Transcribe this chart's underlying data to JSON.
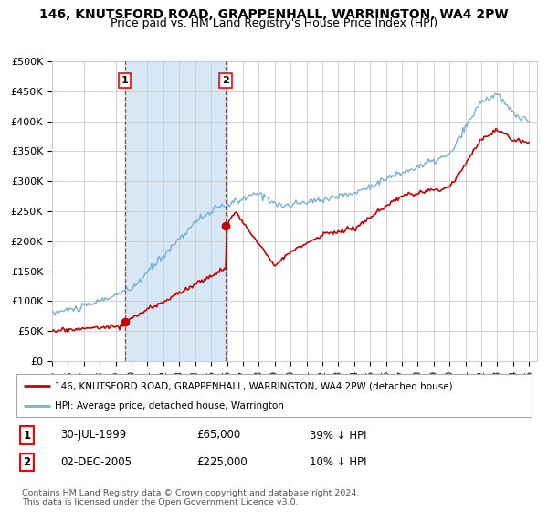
{
  "title": "146, KNUTSFORD ROAD, GRAPPENHALL, WARRINGTON, WA4 2PW",
  "subtitle": "Price paid vs. HM Land Registry's House Price Index (HPI)",
  "legend_line1": "146, KNUTSFORD ROAD, GRAPPENHALL, WARRINGTON, WA4 2PW (detached house)",
  "legend_line2": "HPI: Average price, detached house, Warrington",
  "footnote": "Contains HM Land Registry data © Crown copyright and database right 2024.\nThis data is licensed under the Open Government Licence v3.0.",
  "table": [
    {
      "num": "1",
      "date": "30-JUL-1999",
      "price": "£65,000",
      "hpi": "39% ↓ HPI"
    },
    {
      "num": "2",
      "date": "02-DEC-2005",
      "price": "£225,000",
      "hpi": "10% ↓ HPI"
    }
  ],
  "vline1_year": 1999.58,
  "vline2_year": 2005.92,
  "point1_year": 1999.58,
  "point1_price": 65000,
  "point2_year": 2005.92,
  "point2_price": 225000,
  "ylim": [
    0,
    500000
  ],
  "xlim_start": 1995,
  "xlim_end": 2025.5,
  "red_color": "#cc0000",
  "hpi_color": "#7ab0d4",
  "shade_color": "#d6e8f5",
  "background_color": "#ffffff",
  "grid_color": "#cccccc",
  "title_fontsize": 10,
  "subtitle_fontsize": 9,
  "ytick_labels": [
    "£0",
    "£50K",
    "£100K",
    "£150K",
    "£200K",
    "£250K",
    "£300K",
    "£350K",
    "£400K",
    "£450K",
    "£500K"
  ],
  "ytick_values": [
    0,
    50000,
    100000,
    150000,
    200000,
    250000,
    300000,
    350000,
    400000,
    450000,
    500000
  ],
  "xtick_years": [
    1995,
    1996,
    1997,
    1998,
    1999,
    2000,
    2001,
    2002,
    2003,
    2004,
    2005,
    2006,
    2007,
    2008,
    2009,
    2010,
    2011,
    2012,
    2013,
    2014,
    2015,
    2016,
    2017,
    2018,
    2019,
    2020,
    2021,
    2022,
    2023,
    2024,
    2025
  ]
}
